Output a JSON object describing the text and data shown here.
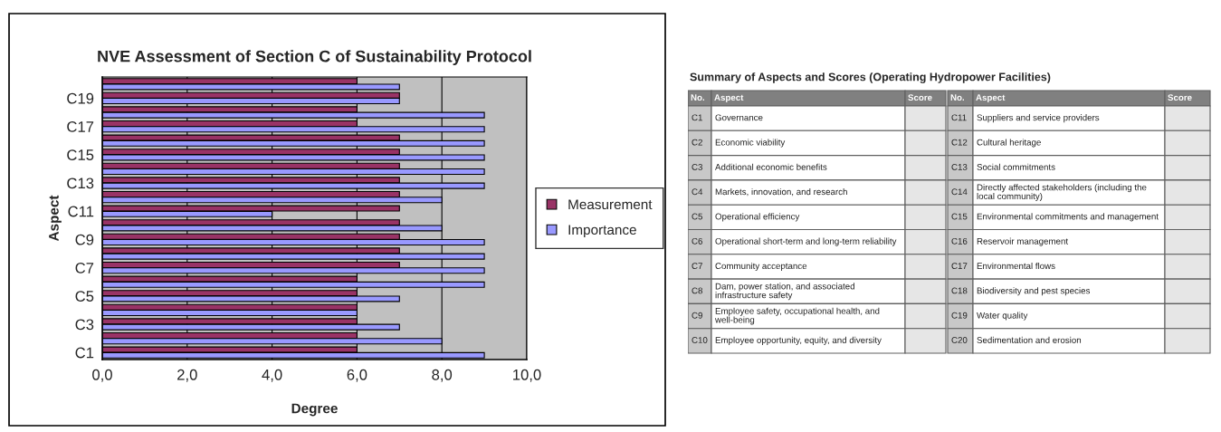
{
  "chart_data": [
    {
      "type": "bar",
      "orientation": "horizontal",
      "title": "NVE Assessment of Section C of Sustainability Protocol",
      "xlabel": "Degree",
      "ylabel": "Aspect",
      "categories": [
        null,
        "C19",
        null,
        "C17",
        null,
        "C15",
        null,
        "C13",
        null,
        "C11",
        null,
        "C9",
        null,
        "C7",
        null,
        "C5",
        null,
        "C3",
        null,
        "C1"
      ],
      "series": [
        {
          "name": "Measurement",
          "color": "#993366",
          "values": [
            6,
            7,
            6,
            6,
            7,
            7,
            7,
            7,
            7,
            7,
            7,
            7,
            7,
            7,
            6,
            6,
            6,
            6,
            6,
            6
          ]
        },
        {
          "name": "Importance",
          "color": "#9999ff",
          "values": [
            7,
            7,
            9,
            9,
            9,
            9,
            9,
            9,
            8,
            4,
            8,
            9,
            9,
            9,
            9,
            7,
            6,
            7,
            8,
            9
          ]
        }
      ],
      "xlim": [
        0,
        10
      ],
      "xticks": [
        {
          "value": 0,
          "label": "0,0"
        },
        {
          "value": 2,
          "label": "2,0"
        },
        {
          "value": 4,
          "label": "4,0"
        },
        {
          "value": 6,
          "label": "6,0"
        },
        {
          "value": 8,
          "label": "8,0"
        },
        {
          "value": 10,
          "label": "10,0"
        }
      ],
      "grid": "x",
      "legend": "right"
    },
    {
      "type": "other",
      "title": "Summary of Aspects and Scores (Operating Hydropower Facilities)",
      "annotations": [
        "No.",
        "Aspect",
        "Score",
        "No.",
        "Aspect",
        "Score",
        "C1",
        "Governance",
        "C11",
        "Suppliers and service providers",
        "C2",
        "Economic viability",
        "C12",
        "Cultural heritage",
        "C3",
        "Additional economic benefits",
        "C13",
        "Social commitments",
        "C4",
        "Markets, innovation, and research",
        "C14",
        "Directly affected stakeholders (including the local community)",
        "C5",
        "Operational efficiency",
        "C15",
        "Environmental commitments and management",
        "C6",
        "Operational short-term and long-term reliability",
        "C16",
        "Reservoir management",
        "C7",
        "Community acceptance",
        "C17",
        "Environmental flows",
        "C8",
        "Dam, power station, and associated infrastructure safety",
        "C18",
        "Biodiversity and pest species",
        "C9",
        "Employee safety, occupational health, and well-being",
        "C19",
        "Water quality",
        "C10",
        "Employee opportunity, equity, and diversity",
        "C20",
        "Sedimentation and erosion"
      ]
    }
  ]
}
